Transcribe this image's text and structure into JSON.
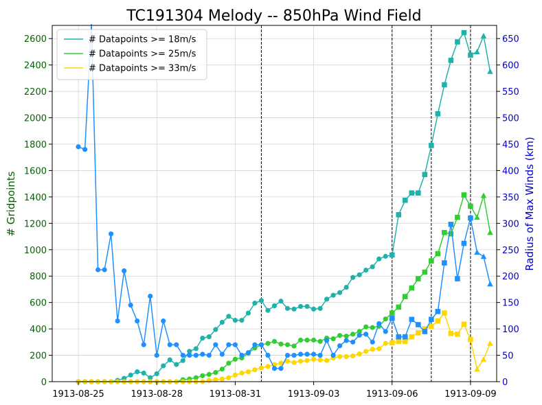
{
  "chart_data": {
    "type": "line",
    "title": "TC191304 Melody -- 850hPa Wind Field",
    "ylabel": "# Gridpoints",
    "y2label": "Radius of Max Winds (km)",
    "xlim": [
      "1913-08-24T00:00",
      "1913-09-10T00:00"
    ],
    "ylim": [
      0,
      2700
    ],
    "y2lim": [
      0,
      675
    ],
    "xticks": [
      "1913-08-25",
      "1913-08-28",
      "1913-08-31",
      "1913-09-03",
      "1913-09-06",
      "1913-09-09"
    ],
    "yticks": [
      0,
      200,
      400,
      600,
      800,
      1000,
      1200,
      1400,
      1600,
      1800,
      2000,
      2200,
      2400,
      2600
    ],
    "y2ticks": [
      0,
      50,
      100,
      150,
      200,
      250,
      300,
      350,
      400,
      450,
      500,
      550,
      600,
      650
    ],
    "grid": true,
    "legend_position": "upper-left",
    "vlines": [
      "1913-09-01T00:00",
      "1913-09-06T00:00",
      "1913-09-07T12:00",
      "1913-09-09T00:00"
    ],
    "x_start": "1913-08-25T00:00",
    "x_step_hours": 6,
    "series": [
      {
        "name": "# Datapoints >= 18m/s",
        "color": "#20b2aa",
        "axis": "left",
        "values": [
          0,
          0,
          0,
          0,
          0,
          0,
          10,
          25,
          50,
          75,
          65,
          30,
          60,
          120,
          165,
          130,
          160,
          230,
          250,
          330,
          340,
          395,
          450,
          495,
          465,
          465,
          520,
          595,
          615,
          540,
          575,
          610,
          555,
          550,
          570,
          570,
          550,
          555,
          625,
          655,
          675,
          715,
          790,
          810,
          845,
          870,
          930,
          950,
          960,
          1265,
          1375,
          1430,
          1430,
          1570,
          1790,
          2030,
          2250,
          2435,
          2575,
          2645,
          2475,
          2500,
          2620,
          2350
        ]
      },
      {
        "name": "# Datapoints >= 25m/s",
        "color": "#32cd32",
        "axis": "left",
        "values": [
          0,
          0,
          0,
          0,
          0,
          0,
          0,
          0,
          0,
          0,
          0,
          0,
          0,
          0,
          0,
          0,
          15,
          20,
          30,
          45,
          55,
          70,
          95,
          140,
          170,
          180,
          215,
          255,
          280,
          290,
          305,
          285,
          280,
          270,
          315,
          315,
          315,
          305,
          330,
          325,
          350,
          345,
          360,
          380,
          415,
          410,
          420,
          475,
          520,
          565,
          645,
          710,
          780,
          830,
          915,
          970,
          1130,
          1120,
          1245,
          1415,
          1330,
          1245,
          1410,
          1130
        ]
      },
      {
        "name": "# Datapoints >= 33m/s",
        "color": "#ffd700",
        "axis": "left",
        "values": [
          0,
          0,
          0,
          0,
          0,
          0,
          0,
          0,
          0,
          0,
          0,
          0,
          0,
          0,
          0,
          0,
          0,
          0,
          0,
          0,
          10,
          15,
          20,
          30,
          50,
          65,
          75,
          90,
          105,
          115,
          130,
          140,
          155,
          145,
          155,
          160,
          170,
          165,
          160,
          180,
          190,
          190,
          195,
          210,
          230,
          245,
          250,
          290,
          295,
          305,
          305,
          340,
          370,
          400,
          420,
          460,
          520,
          365,
          360,
          435,
          320,
          95,
          170,
          290
        ]
      },
      {
        "name": "",
        "color": "#1e90ff",
        "axis": "right",
        "values": [
          445,
          440,
          690,
          212,
          212,
          280,
          115,
          210,
          145,
          115,
          70,
          162,
          50,
          115,
          70,
          70,
          50,
          50,
          50,
          52,
          50,
          70,
          52,
          70,
          70,
          50,
          55,
          70,
          70,
          50,
          25,
          25,
          50,
          50,
          52,
          52,
          52,
          50,
          78,
          50,
          68,
          78,
          75,
          88,
          90,
          75,
          110,
          95,
          120,
          85,
          85,
          118,
          108,
          95,
          118,
          133,
          225,
          298,
          195,
          262,
          310,
          245,
          237,
          185
        ]
      }
    ]
  }
}
